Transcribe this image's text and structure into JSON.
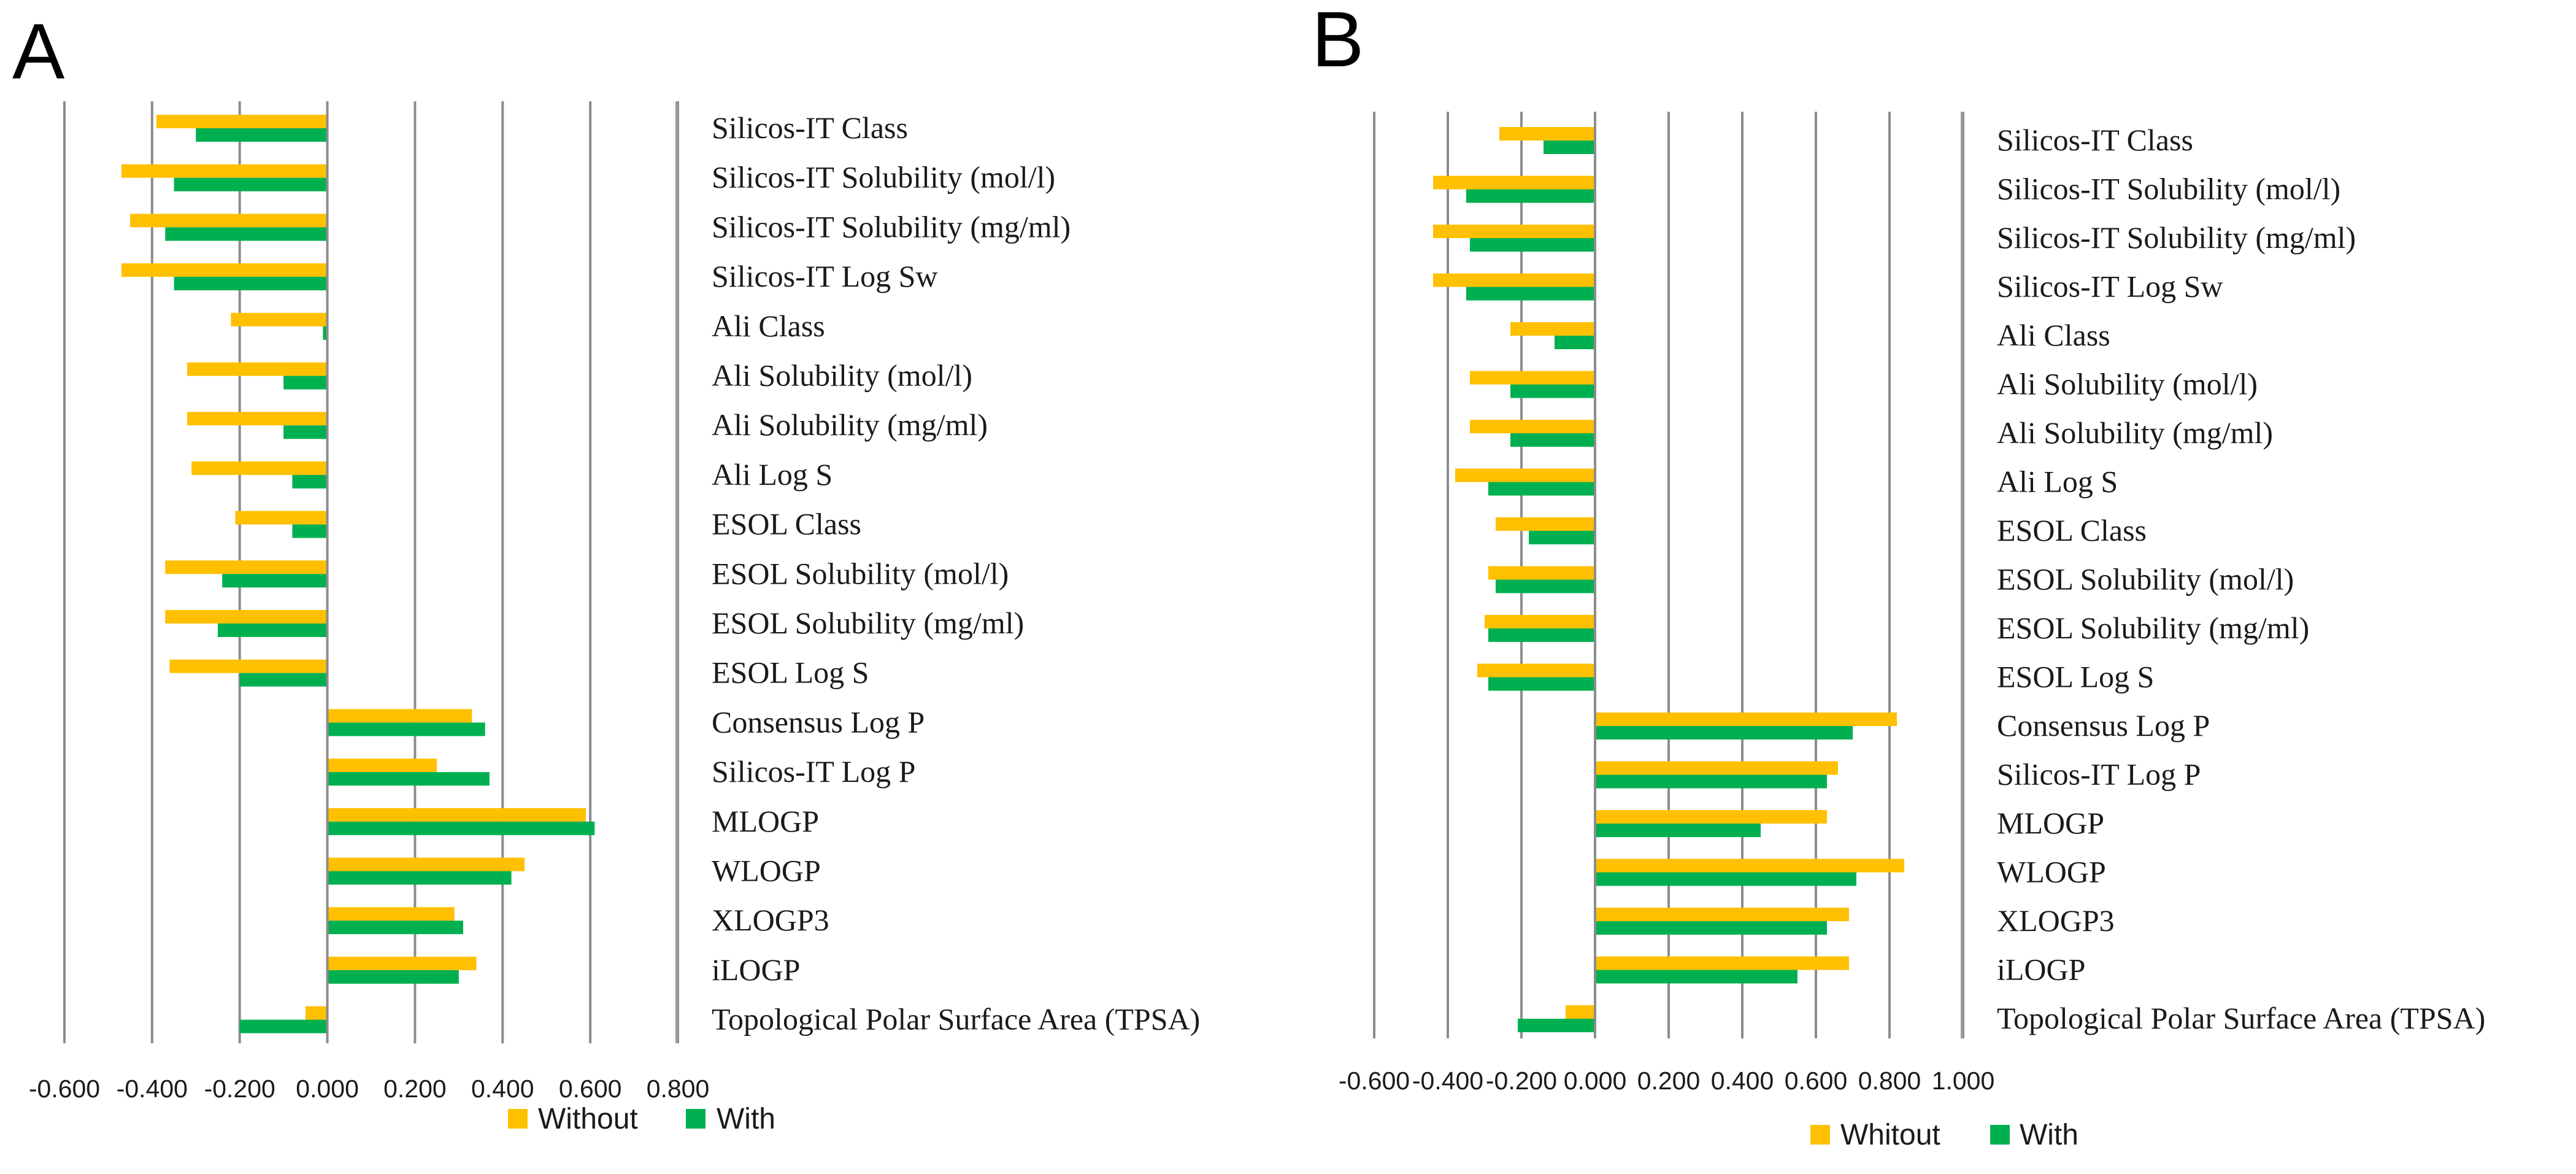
{
  "colors": {
    "without": "#FFC000",
    "with": "#00B050"
  },
  "chart_data": [
    {
      "type": "bar",
      "orientation": "horizontal",
      "panel": "A",
      "categories": [
        "Silicos-IT Class",
        "Silicos-IT Solubility (mol/l)",
        "Silicos-IT Solubility (mg/ml)",
        "Silicos-IT Log Sw",
        "Ali Class",
        "Ali Solubility (mol/l)",
        "Ali Solubility (mg/ml)",
        "Ali Log S",
        "ESOL Class",
        "ESOL Solubility (mol/l)",
        "ESOL Solubility (mg/ml)",
        "ESOL Log S",
        "Consensus Log P",
        "Silicos-IT Log P",
        "MLOGP",
        "WLOGP",
        "XLOGP3",
        "iLOGP",
        "Topological Polar Surface Area (TPSA)"
      ],
      "series": [
        {
          "name": "Without",
          "values": [
            -0.39,
            -0.47,
            -0.45,
            -0.47,
            -0.22,
            -0.32,
            -0.32,
            -0.31,
            -0.21,
            -0.37,
            -0.37,
            -0.36,
            0.33,
            0.25,
            0.59,
            0.45,
            0.29,
            0.34,
            -0.05
          ]
        },
        {
          "name": "With",
          "values": [
            -0.3,
            -0.35,
            -0.37,
            -0.35,
            -0.01,
            -0.1,
            -0.1,
            -0.08,
            -0.08,
            -0.24,
            -0.25,
            -0.2,
            0.36,
            0.37,
            0.61,
            0.42,
            0.31,
            0.3,
            -0.2
          ]
        }
      ],
      "xlim": [
        -0.6,
        0.8
      ],
      "xticks": [
        -0.6,
        -0.4,
        -0.2,
        0.0,
        0.2,
        0.4,
        0.6,
        0.8
      ],
      "xtick_labels": [
        "-0.600",
        "-0.400",
        "-0.200",
        "0.000",
        "0.200",
        "0.400",
        "0.600",
        "0.800"
      ],
      "legend": [
        "Without",
        "With"
      ],
      "legend_position": "bottom",
      "grid": true
    },
    {
      "type": "bar",
      "orientation": "horizontal",
      "panel": "B",
      "categories": [
        "Silicos-IT Class",
        "Silicos-IT Solubility (mol/l)",
        "Silicos-IT Solubility (mg/ml)",
        "Silicos-IT Log Sw",
        "Ali Class",
        "Ali Solubility (mol/l)",
        "Ali Solubility (mg/ml)",
        "Ali Log S",
        "ESOL Class",
        "ESOL Solubility (mol/l)",
        "ESOL Solubility (mg/ml)",
        "ESOL Log S",
        "Consensus Log P",
        "Silicos-IT Log P",
        "MLOGP",
        "WLOGP",
        "XLOGP3",
        "iLOGP",
        "Topological Polar Surface Area (TPSA)"
      ],
      "series": [
        {
          "name": "Whitout",
          "values": [
            -0.26,
            -0.44,
            -0.44,
            -0.44,
            -0.23,
            -0.34,
            -0.34,
            -0.38,
            -0.27,
            -0.29,
            -0.3,
            -0.32,
            0.82,
            0.66,
            0.63,
            0.84,
            0.69,
            0.69,
            -0.08
          ]
        },
        {
          "name": "With",
          "values": [
            -0.14,
            -0.35,
            -0.34,
            -0.35,
            -0.11,
            -0.23,
            -0.23,
            -0.29,
            -0.18,
            -0.27,
            -0.29,
            -0.29,
            0.7,
            0.63,
            0.45,
            0.71,
            0.63,
            0.55,
            -0.21
          ]
        }
      ],
      "xlim": [
        -0.6,
        1.0
      ],
      "xticks": [
        -0.6,
        -0.4,
        -0.2,
        0.0,
        0.2,
        0.4,
        0.6,
        0.8,
        1.0
      ],
      "xtick_labels": [
        "-0.600",
        "-0.400",
        "-0.200",
        "0.000",
        "0.200",
        "0.400",
        "0.600",
        "0.800",
        "1.000"
      ],
      "legend": [
        "Whitout",
        "With"
      ],
      "legend_position": "bottom",
      "grid": true
    }
  ]
}
